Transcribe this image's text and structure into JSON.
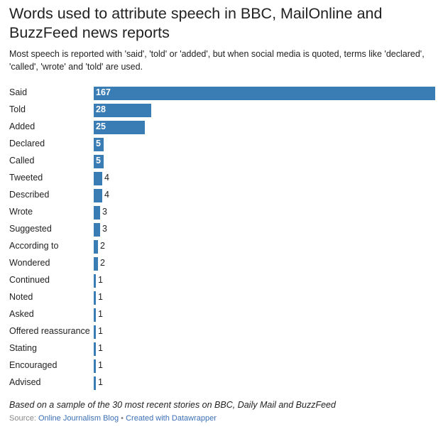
{
  "chart_data": {
    "type": "bar",
    "orientation": "horizontal",
    "title": "Words used to attribute speech in BBC, MailOnline and BuzzFeed news reports",
    "subtitle": "Most speech is reported with 'said', 'told' or 'added', but when social media is quoted, terms like 'declared', 'called', 'wrote' and 'told' are used.",
    "categories": [
      "Said",
      "Told",
      "Added",
      "Declared",
      "Called",
      "Tweeted",
      "Described",
      "Wrote",
      "Suggested",
      "According to",
      "Wondered",
      "Continued",
      "Noted",
      "Asked",
      "Offered reassurance",
      "Stating",
      "Encouraged",
      "Advised"
    ],
    "values": [
      167,
      28,
      25,
      5,
      5,
      4,
      4,
      3,
      3,
      2,
      2,
      1,
      1,
      1,
      1,
      1,
      1,
      1
    ],
    "value_labels": [
      "167",
      "28",
      "25",
      "5",
      "5",
      "4",
      "4",
      "3",
      "3",
      "2",
      "2",
      "1",
      "1",
      "1",
      "1",
      "1",
      "1",
      "1"
    ],
    "xlim": [
      0,
      167
    ],
    "grid": false,
    "bar_color": "#3a7db5"
  },
  "footer": {
    "note": "Based on a sample of the 30 most recent stories on BBC, Daily Mail and BuzzFeed",
    "source_label": "Source:",
    "source_name": "Online Journalism Blog",
    "separator": "•",
    "credit": "Created with Datawrapper"
  }
}
